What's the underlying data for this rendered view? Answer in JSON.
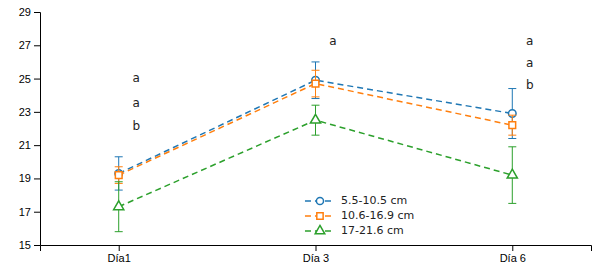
{
  "chart_data": {
    "type": "line",
    "categories": [
      "Día1",
      "Día 3",
      "Día 6"
    ],
    "series": [
      {
        "name": "5.5-10.5 cm",
        "values": [
          19.3,
          24.9,
          22.9
        ],
        "errors": [
          1.0,
          1.1,
          1.5
        ],
        "marker": "circle",
        "line_style": "dashed"
      },
      {
        "name": "10.6-16.9 cm",
        "values": [
          19.2,
          24.7,
          22.2
        ],
        "errors": [
          0.5,
          0.8,
          0.6
        ],
        "marker": "square",
        "line_style": "dashed"
      },
      {
        "name": "17-21.6 cm",
        "values": [
          17.3,
          22.5,
          19.2
        ],
        "errors": [
          1.5,
          0.9,
          1.7
        ],
        "marker": "triangle",
        "line_style": "dashed"
      }
    ],
    "annotations": [
      {
        "text": "a",
        "category": "Día1",
        "y": 25.0
      },
      {
        "text": "a",
        "category": "Día1",
        "y": 23.5
      },
      {
        "text": "b",
        "category": "Día1",
        "y": 22.1
      },
      {
        "text": "a",
        "category": "Día 3",
        "y": 27.2
      },
      {
        "text": "a",
        "category": "Día 6",
        "y": 27.2
      },
      {
        "text": "a",
        "category": "Día 6",
        "y": 25.9
      },
      {
        "text": "b",
        "category": "Día 6",
        "y": 24.6
      }
    ],
    "ylim": [
      15,
      29
    ],
    "yticks": [
      15,
      17,
      19,
      21,
      23,
      25,
      27,
      29
    ],
    "grid": false,
    "legend": "lower center"
  }
}
